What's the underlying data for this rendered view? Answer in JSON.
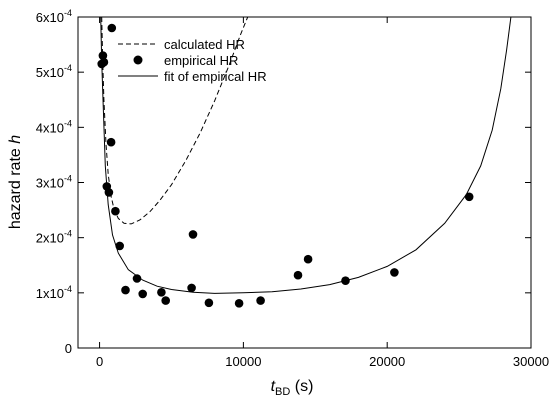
{
  "chart_data": {
    "type": "scatter",
    "title": "",
    "xlabel_main": "t",
    "xlabel_sub": "BD",
    "xlabel_unit": " (s)",
    "ylabel_main": "hazard rate ",
    "ylabel_var": "h",
    "xlim": [
      -1500,
      30000
    ],
    "ylim": [
      0,
      0.0006
    ],
    "x_ticks": [
      0,
      10000,
      20000,
      30000
    ],
    "x_tick_labels": [
      "0",
      "10000",
      "20000",
      "30000"
    ],
    "y_ticks": [
      0,
      0.0001,
      0.0002,
      0.0003,
      0.0004,
      0.0005,
      0.0006
    ],
    "y_tick_labels": [
      {
        "base": "0",
        "exp": ""
      },
      {
        "base": "1x10",
        "exp": "-4"
      },
      {
        "base": "2x10",
        "exp": "-4"
      },
      {
        "base": "3x10",
        "exp": "-4"
      },
      {
        "base": "4x10",
        "exp": "-4"
      },
      {
        "base": "5x10",
        "exp": "-4"
      },
      {
        "base": "6x10",
        "exp": "-4"
      }
    ],
    "grid": false,
    "legend_position": "top-left",
    "series": [
      {
        "name": "calculated HR",
        "kind": "line",
        "style": "dashed",
        "color": "#000000",
        "points": [
          [
            150,
            0.0006
          ],
          [
            220,
            0.00052
          ],
          [
            300,
            0.00045
          ],
          [
            450,
            0.00037
          ],
          [
            600,
            0.000315
          ],
          [
            800,
            0.000275
          ],
          [
            1000,
            0.000252
          ],
          [
            1300,
            0.000235
          ],
          [
            1700,
            0.000226
          ],
          [
            2200,
            0.000225
          ],
          [
            2800,
            0.000232
          ],
          [
            3500,
            0.000247
          ],
          [
            4200,
            0.000268
          ],
          [
            5000,
            0.000296
          ],
          [
            6000,
            0.00034
          ],
          [
            7000,
            0.00039
          ],
          [
            8000,
            0.000448
          ],
          [
            9000,
            0.000512
          ],
          [
            9800,
            0.000568
          ],
          [
            10300,
            0.0006
          ]
        ]
      },
      {
        "name": "empirical HR",
        "kind": "scatter",
        "color": "#000000",
        "points": [
          [
            150,
            0.000515
          ],
          [
            230,
            0.00053
          ],
          [
            300,
            0.000518
          ],
          [
            500,
            0.000293
          ],
          [
            650,
            0.000282
          ],
          [
            800,
            0.000373
          ],
          [
            850,
            0.00058
          ],
          [
            1100,
            0.000248
          ],
          [
            1400,
            0.000185
          ],
          [
            1800,
            0.000105
          ],
          [
            2600,
            0.000126
          ],
          [
            3000,
            9.8e-05
          ],
          [
            4300,
            0.000101
          ],
          [
            4600,
            8.6e-05
          ],
          [
            6400,
            0.000109
          ],
          [
            6500,
            0.000206
          ],
          [
            7600,
            8.2e-05
          ],
          [
            9700,
            8.1e-05
          ],
          [
            11200,
            8.6e-05
          ],
          [
            13800,
            0.000132
          ],
          [
            14500,
            0.000161
          ],
          [
            17100,
            0.000122
          ],
          [
            20500,
            0.000137
          ],
          [
            25700,
            0.000274
          ]
        ]
      },
      {
        "name": "fit of empirical HR",
        "kind": "line",
        "style": "solid",
        "color": "#000000",
        "points": [
          [
            80,
            0.0006
          ],
          [
            150,
            0.00052
          ],
          [
            250,
            0.00044
          ],
          [
            400,
            0.00033
          ],
          [
            600,
            0.00026
          ],
          [
            900,
            0.000205
          ],
          [
            1300,
            0.000172
          ],
          [
            2000,
            0.000142
          ],
          [
            3000,
            0.000123
          ],
          [
            4000,
            0.000112
          ],
          [
            5000,
            0.000106
          ],
          [
            6500,
            0.000101
          ],
          [
            8000,
            9.9e-05
          ],
          [
            10000,
            0.0001
          ],
          [
            12000,
            0.000102
          ],
          [
            14000,
            0.000107
          ],
          [
            16000,
            0.000115
          ],
          [
            18000,
            0.000128
          ],
          [
            20000,
            0.000148
          ],
          [
            22000,
            0.000178
          ],
          [
            24000,
            0.000226
          ],
          [
            25500,
            0.000278
          ],
          [
            26500,
            0.00033
          ],
          [
            27300,
            0.000395
          ],
          [
            27900,
            0.00047
          ],
          [
            28300,
            0.00054
          ],
          [
            28600,
            0.0006
          ]
        ]
      }
    ]
  }
}
